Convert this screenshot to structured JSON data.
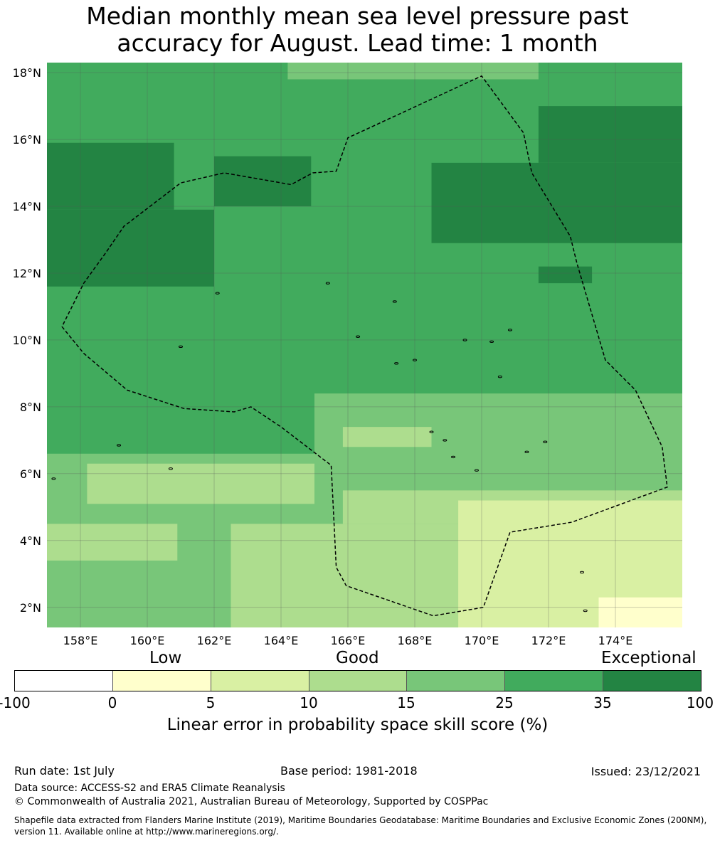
{
  "title": {
    "line1": "Median monthly mean sea level pressure past",
    "line2": "accuracy for August. Lead time: 1 month"
  },
  "map": {
    "lat_labels": [
      "18°N",
      "16°N",
      "14°N",
      "12°N",
      "10°N",
      "8°N",
      "6°N",
      "4°N",
      "2°N"
    ],
    "lon_labels": [
      "158°E",
      "160°E",
      "162°E",
      "164°E",
      "166°E",
      "168°E",
      "170°E",
      "172°E",
      "174°E"
    ],
    "lat_values": [
      18,
      16,
      14,
      12,
      10,
      8,
      6,
      4,
      2
    ],
    "lon_values": [
      158,
      160,
      162,
      164,
      166,
      168,
      170,
      172,
      174
    ],
    "extent": {
      "lon_min": 157.0,
      "lon_max": 176.0,
      "lat_min": 1.4,
      "lat_max": 18.3
    },
    "eez_boundary": [
      [
        157.45,
        10.4
      ],
      [
        158.1,
        9.6
      ],
      [
        159.4,
        8.5
      ],
      [
        161.1,
        7.95
      ],
      [
        162.6,
        7.85
      ],
      [
        163.1,
        8.0
      ],
      [
        164.0,
        7.4
      ],
      [
        165.5,
        6.25
      ],
      [
        165.65,
        3.2
      ],
      [
        165.95,
        2.65
      ],
      [
        168.55,
        1.75
      ],
      [
        170.05,
        2.0
      ],
      [
        170.85,
        4.25
      ],
      [
        172.7,
        4.55
      ],
      [
        175.55,
        5.6
      ],
      [
        175.4,
        6.8
      ],
      [
        174.6,
        8.5
      ],
      [
        173.7,
        9.4
      ],
      [
        172.85,
        12.3
      ],
      [
        172.65,
        13.1
      ],
      [
        171.5,
        15.0
      ],
      [
        171.25,
        16.2
      ],
      [
        170.0,
        17.9
      ],
      [
        166.0,
        16.05
      ],
      [
        165.65,
        15.05
      ],
      [
        164.95,
        15.0
      ],
      [
        164.3,
        14.65
      ],
      [
        162.3,
        15.0
      ],
      [
        161.0,
        14.7
      ],
      [
        159.3,
        13.4
      ],
      [
        158.75,
        12.6
      ],
      [
        158.1,
        11.7
      ],
      [
        157.45,
        10.4
      ]
    ],
    "islands": [
      [
        166.3,
        10.1
      ],
      [
        167.4,
        11.15
      ],
      [
        168.0,
        9.4
      ],
      [
        168.5,
        7.25
      ],
      [
        169.15,
        6.5
      ],
      [
        169.85,
        6.1
      ],
      [
        170.55,
        8.9
      ],
      [
        171.35,
        6.65
      ],
      [
        171.9,
        6.95
      ],
      [
        173.0,
        3.05
      ],
      [
        173.1,
        1.9
      ],
      [
        162.1,
        11.4
      ],
      [
        165.4,
        11.7
      ],
      [
        168.9,
        7.0
      ],
      [
        170.3,
        9.95
      ],
      [
        161.0,
        9.8
      ],
      [
        160.7,
        6.15
      ],
      [
        159.15,
        6.85
      ],
      [
        157.2,
        5.85
      ],
      [
        170.85,
        10.3
      ],
      [
        167.45,
        9.3
      ],
      [
        169.5,
        10.0
      ]
    ],
    "colors": {
      "c0": "#ffffcc",
      "c5": "#d9f0a3",
      "c10": "#addd8e",
      "c15": "#78c679",
      "c25": "#41ab5d",
      "c35": "#238443",
      "boundary": "#000000",
      "grid": "#555555"
    },
    "regions": [
      {
        "cls": "c25",
        "poly": [
          [
            157,
            1.4
          ],
          [
            176,
            1.4
          ],
          [
            176,
            18.3
          ],
          [
            157,
            18.3
          ]
        ]
      },
      {
        "cls": "c15",
        "poly": [
          [
            157,
            1.4
          ],
          [
            165,
            1.4
          ],
          [
            165,
            6.6
          ],
          [
            157,
            6.6
          ]
        ]
      },
      {
        "cls": "c15",
        "poly": [
          [
            165,
            1.4
          ],
          [
            176,
            1.4
          ],
          [
            176,
            8.4
          ],
          [
            165,
            8.4
          ]
        ]
      },
      {
        "cls": "c10",
        "poly": [
          [
            158.2,
            5.1
          ],
          [
            165,
            5.1
          ],
          [
            165,
            6.3
          ],
          [
            158.2,
            6.3
          ]
        ]
      },
      {
        "cls": "c10",
        "poly": [
          [
            157,
            3.4
          ],
          [
            160.9,
            3.4
          ],
          [
            160.9,
            4.5
          ],
          [
            157,
            4.5
          ]
        ]
      },
      {
        "cls": "c10",
        "poly": [
          [
            162.5,
            1.4
          ],
          [
            176,
            1.4
          ],
          [
            176,
            4.5
          ],
          [
            162.5,
            4.5
          ]
        ]
      },
      {
        "cls": "c10",
        "poly": [
          [
            165.85,
            4.5
          ],
          [
            176,
            4.5
          ],
          [
            176,
            5.5
          ],
          [
            165.85,
            5.5
          ]
        ]
      },
      {
        "cls": "c10",
        "poly": [
          [
            165.85,
            6.8
          ],
          [
            168.5,
            6.8
          ],
          [
            168.5,
            7.4
          ],
          [
            165.85,
            7.4
          ]
        ]
      },
      {
        "cls": "c5",
        "poly": [
          [
            169.3,
            1.4
          ],
          [
            176,
            1.4
          ],
          [
            176,
            5.2
          ],
          [
            169.3,
            5.2
          ]
        ]
      },
      {
        "cls": "c0",
        "poly": [
          [
            173.5,
            1.4
          ],
          [
            176,
            1.4
          ],
          [
            176,
            2.3
          ],
          [
            173.5,
            2.3
          ]
        ]
      },
      {
        "cls": "c25",
        "poly": [
          [
            157,
            7.6
          ],
          [
            164.5,
            7.6
          ],
          [
            164.5,
            18.3
          ],
          [
            157,
            18.3
          ]
        ]
      },
      {
        "cls": "c15",
        "poly": [
          [
            164.2,
            17.8
          ],
          [
            171.7,
            17.8
          ],
          [
            171.7,
            18.3
          ],
          [
            164.2,
            18.3
          ]
        ]
      },
      {
        "cls": "c35",
        "poly": [
          [
            157,
            11.6
          ],
          [
            162.0,
            11.6
          ],
          [
            162.0,
            13.9
          ],
          [
            157,
            13.9
          ]
        ]
      },
      {
        "cls": "c35",
        "poly": [
          [
            157,
            13.9
          ],
          [
            160.8,
            13.9
          ],
          [
            160.8,
            15.9
          ],
          [
            157,
            15.9
          ]
        ]
      },
      {
        "cls": "c35",
        "poly": [
          [
            168.5,
            12.9
          ],
          [
            176,
            12.9
          ],
          [
            176,
            15.3
          ],
          [
            168.5,
            15.3
          ]
        ]
      },
      {
        "cls": "c35",
        "poly": [
          [
            171.7,
            15.3
          ],
          [
            176,
            15.3
          ],
          [
            176,
            17.0
          ],
          [
            171.7,
            17.0
          ]
        ]
      },
      {
        "cls": "c35",
        "poly": [
          [
            171.7,
            11.7
          ],
          [
            173.3,
            11.7
          ],
          [
            173.3,
            12.2
          ],
          [
            171.7,
            12.2
          ]
        ]
      },
      {
        "cls": "c35",
        "poly": [
          [
            162.0,
            14.0
          ],
          [
            164.9,
            14.0
          ],
          [
            164.9,
            15.5
          ],
          [
            162.0,
            15.5
          ]
        ]
      }
    ]
  },
  "colorbar": {
    "categories": {
      "low": "Low",
      "good": "Good",
      "exceptional": "Exceptional"
    },
    "ticks": [
      "-100",
      "0",
      "5",
      "10",
      "15",
      "25",
      "35",
      "100"
    ],
    "colors": [
      "#ffffff",
      "#ffffcc",
      "#d9f0a3",
      "#addd8e",
      "#78c679",
      "#41ab5d",
      "#238443"
    ],
    "label": "Linear error in probability space skill score (%)"
  },
  "footer": {
    "run_date": "Run date: 1st July",
    "base_period": "Base period: 1981-2018",
    "issued": "Issued: 23/12/2021",
    "data_source": "Data source: ACCESS-S2 and ERA5 Climate Reanalysis",
    "copyright": "© Commonwealth of Australia 2021, Australian Bureau of Meteorology, Supported by COSPPac",
    "shapefile_line1": "Shapefile data extracted from Flanders Marine Institute (2019), Maritime Boundaries Geodatabase: Maritime Boundaries and Exclusive Economic Zones (200NM),",
    "shapefile_line2": "version 11. Available online at http://www.marineregions.org/."
  }
}
